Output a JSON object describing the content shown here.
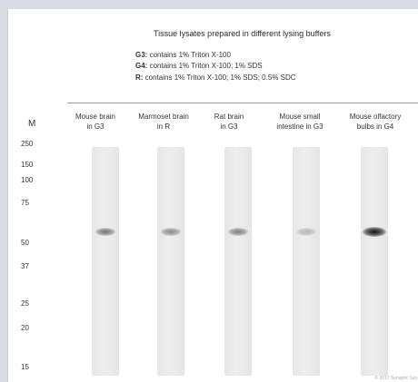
{
  "figure": {
    "title": "Tissue lysates prepared in different lysing buffers",
    "buffers": [
      {
        "code": "G3:",
        "desc": " contains 1% Triton X-100"
      },
      {
        "code": "G4:",
        "desc": " contains 1% Triton X-100; 1% SDS"
      },
      {
        "code": "R:",
        "desc": " contains 1% Triton X-100; 1% SDS; 0.5% SDC"
      }
    ],
    "marker_header": "M",
    "marker_values": [
      "250",
      "150",
      "100",
      "75",
      "50",
      "37",
      "25",
      "20",
      "15"
    ],
    "lanes": [
      {
        "line1": "Mouse brain",
        "line2": "in G3",
        "band_intensity": 0.55
      },
      {
        "line1": "Marmoset brain",
        "line2": "in R",
        "band_intensity": 0.45
      },
      {
        "line1": "Rat brain",
        "line2": "in G3",
        "band_intensity": 0.5
      },
      {
        "line1": "Mouse small",
        "line2": "intestine in G3",
        "band_intensity": 0.25
      },
      {
        "line1": "Mouse olfactory",
        "line2": "bulbs in G4",
        "band_intensity": 1.0
      }
    ],
    "copyright": "© 2017 Synaptic Sys"
  },
  "colors": {
    "background": "#d9dce3",
    "panel": "#ffffff",
    "band": "#111111"
  }
}
